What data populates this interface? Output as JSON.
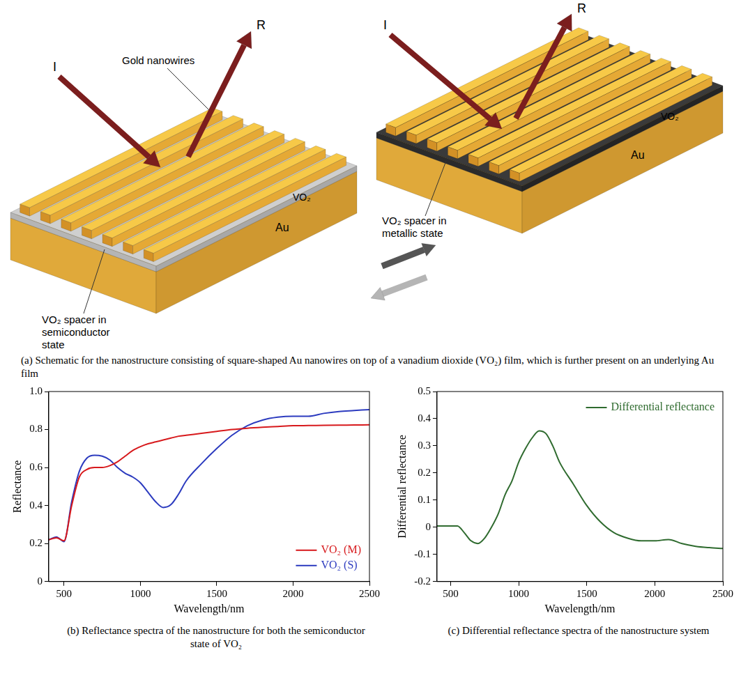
{
  "schematic": {
    "devices": [
      {
        "incident": "I",
        "reflected": "R",
        "wires_label": "Gold nanowires",
        "spacer_label": "VO₂ spacer in semiconductor state",
        "layer": "VO₂",
        "substrate": "Au"
      },
      {
        "incident": "I",
        "reflected": "R",
        "spacer_label": "VO₂ spacer in metallic state",
        "layer": "VO₂",
        "substrate": "Au"
      }
    ],
    "caption": "(a) Schematic for the nanostructure consisting of square-shaped Au nanowires on top of a vanadium dioxide (VO₂) film, which is further present on an underlying Au film"
  },
  "chart_data": [
    {
      "type": "line",
      "caption": "(b) Reflectance spectra of the nanostructure for both the semiconductor state of VO₂",
      "x_label": "Wavelength/nm",
      "y_label": "Reflectance",
      "x": [
        400,
        450,
        500,
        550,
        600,
        650,
        700,
        750,
        800,
        850,
        900,
        950,
        1000,
        1050,
        1100,
        1150,
        1200,
        1250,
        1300,
        1400,
        1500,
        1600,
        1700,
        1800,
        1900,
        2000,
        2100,
        2200,
        2300,
        2400,
        2500
      ],
      "xlim": [
        400,
        2500
      ],
      "xticks": [
        500,
        1000,
        1500,
        2000,
        2500
      ],
      "ylim": [
        0,
        1
      ],
      "yticks": [
        0,
        0.2,
        0.4,
        0.6,
        0.8,
        {
          "value": 1,
          "label": "1.0"
        }
      ],
      "grid": false,
      "legend": "lower right",
      "series": [
        {
          "name": "VO₂ (M)",
          "color": "#d7191c",
          "values": [
            0.22,
            0.23,
            0.215,
            0.4,
            0.55,
            0.59,
            0.6,
            0.6,
            0.61,
            0.63,
            0.66,
            0.69,
            0.71,
            0.725,
            0.735,
            0.745,
            0.755,
            0.765,
            0.77,
            0.78,
            0.79,
            0.8,
            0.807,
            0.812,
            0.816,
            0.82,
            0.821,
            0.822,
            0.823,
            0.824,
            0.825
          ]
        },
        {
          "name": "VO₂ (S)",
          "color": "#2c3bbf",
          "values": [
            0.22,
            0.235,
            0.21,
            0.42,
            0.58,
            0.65,
            0.665,
            0.66,
            0.64,
            0.6,
            0.57,
            0.55,
            0.52,
            0.47,
            0.42,
            0.39,
            0.405,
            0.46,
            0.53,
            0.62,
            0.7,
            0.77,
            0.82,
            0.85,
            0.865,
            0.87,
            0.87,
            0.885,
            0.895,
            0.9,
            0.905
          ]
        }
      ]
    },
    {
      "type": "line",
      "caption": "(c) Differential reflectance spectra of the nanostructure system",
      "x_label": "Wavelength/nm",
      "y_label": "Differential reflectance",
      "x": [
        400,
        450,
        500,
        550,
        600,
        650,
        700,
        750,
        800,
        850,
        900,
        950,
        1000,
        1050,
        1100,
        1150,
        1200,
        1250,
        1300,
        1400,
        1500,
        1600,
        1700,
        1800,
        1900,
        2000,
        2100,
        2200,
        2300,
        2400,
        2500
      ],
      "xlim": [
        400,
        2500
      ],
      "xticks": [
        500,
        1000,
        1500,
        2000,
        2500
      ],
      "ylim": [
        -0.2,
        0.5
      ],
      "yticks": [
        -0.2,
        -0.1,
        0,
        0.1,
        0.2,
        0.3,
        0.4,
        0.5
      ],
      "grid": false,
      "legend": "upper right",
      "series": [
        {
          "name": "Differential reflectance",
          "color": "#2f6b2f",
          "values": [
            0.005,
            0.005,
            0.005,
            0.005,
            -0.02,
            -0.05,
            -0.06,
            -0.04,
            0.0,
            0.05,
            0.12,
            0.17,
            0.24,
            0.29,
            0.33,
            0.355,
            0.345,
            0.3,
            0.24,
            0.16,
            0.08,
            0.02,
            -0.02,
            -0.04,
            -0.05,
            -0.05,
            -0.045,
            -0.06,
            -0.07,
            -0.075,
            -0.078
          ]
        }
      ]
    }
  ]
}
